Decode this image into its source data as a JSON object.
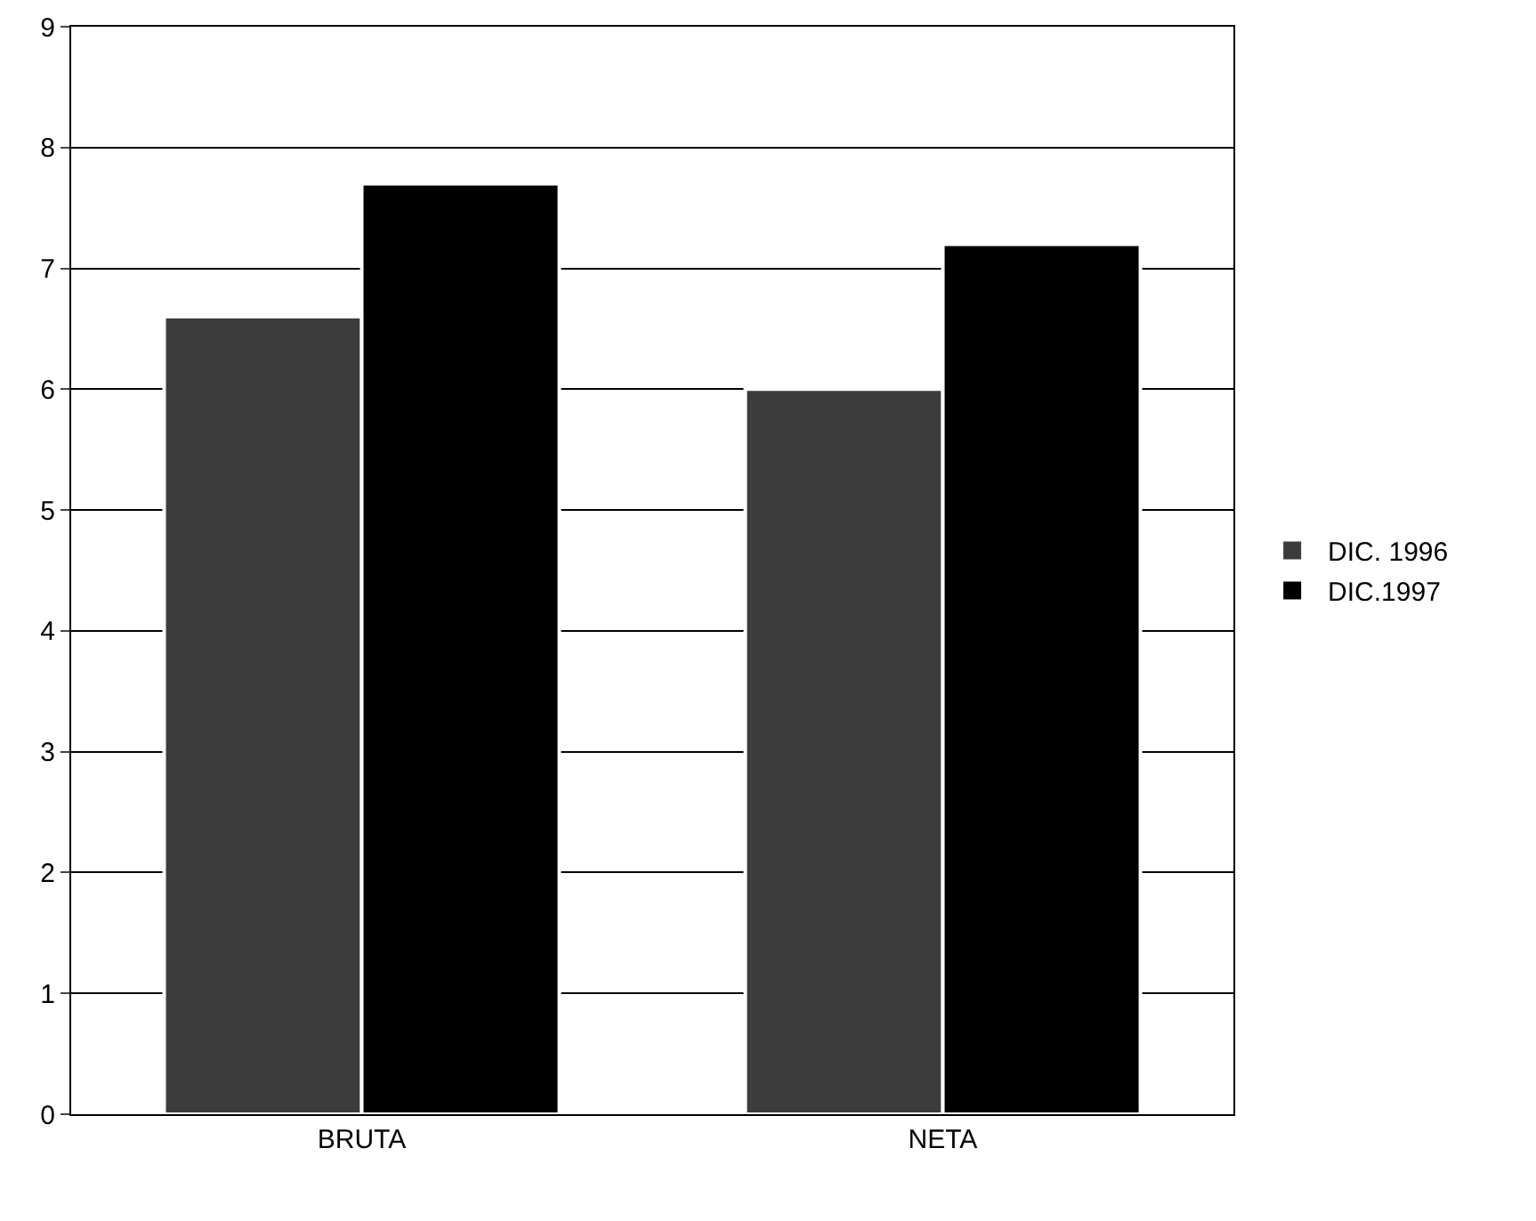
{
  "chart_data": {
    "type": "bar",
    "categories": [
      "BRUTA",
      "NETA"
    ],
    "series": [
      {
        "name": "DIC. 1996",
        "color": "#3c3c3c",
        "values": [
          6.6,
          6.0
        ]
      },
      {
        "name": "DIC.1997",
        "color": "#000000",
        "values": [
          7.7,
          7.2
        ]
      }
    ],
    "ylim": [
      0,
      9
    ],
    "yticks": [
      0,
      1,
      2,
      3,
      4,
      5,
      6,
      7,
      8,
      9
    ],
    "grid": "y",
    "legend": "right"
  }
}
